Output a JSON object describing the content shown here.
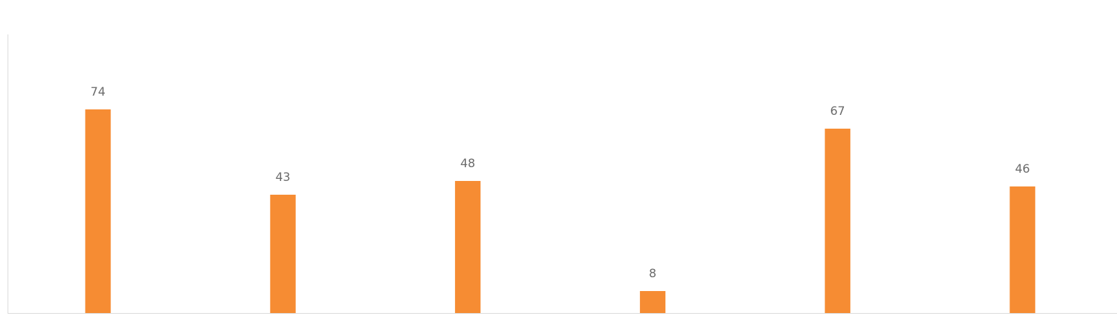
{
  "chart_data": {
    "type": "bar",
    "categories": [
      "",
      "",
      "",
      "",
      "",
      ""
    ],
    "values": [
      74,
      43,
      48,
      8,
      67,
      46
    ],
    "data_labels": [
      "74",
      "43",
      "48",
      "8",
      "67",
      "46"
    ],
    "ylim": [
      0,
      100
    ],
    "grid": false,
    "legend": "none",
    "colors": {
      "bar": "#f68c33",
      "axis": "#d9d9d9",
      "label": "#6b6b6b"
    }
  }
}
